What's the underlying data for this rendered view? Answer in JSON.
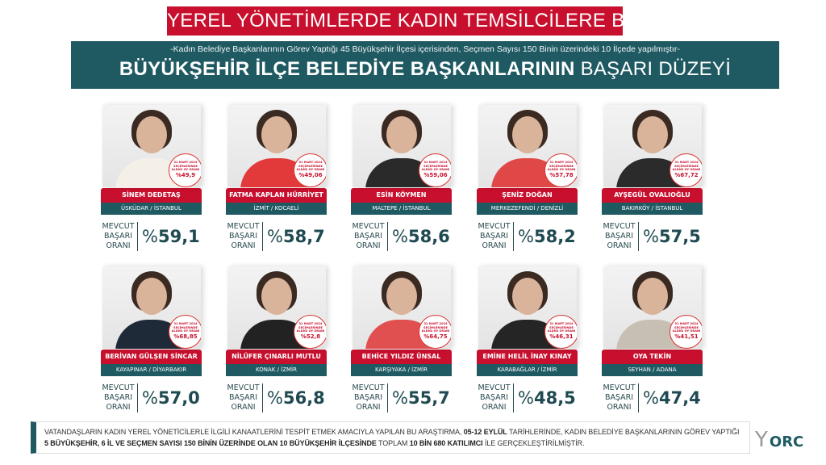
{
  "title": "YEREL YÖNETİMLERDE KADIN TEMSİLCİLERE BAKIŞ",
  "banner": {
    "subtitle": "-Kadın Belediye Başkanlarının Görev Yaptığı 45 Büyükşehir İlçesi içerisinden, Seçmen Sayısı 150 Binin üzerindeki 10 İlçede yapılmıştır-",
    "heading_bold": "BÜYÜKŞEHİR İLÇE BELEDİYE BAŞKANLARININ",
    "heading_light": "BAŞARI DÜZEYİ"
  },
  "badge_label": [
    "31 MART 2024",
    "SEÇİMLERİNDE",
    "ALDIĞI OY ORANI"
  ],
  "metric_label": [
    "MEVCUT",
    "BAŞARI",
    "ORANI"
  ],
  "percent_sign": "%",
  "mayors": [
    {
      "name": "SİNEM DEDETAŞ",
      "location": "ÜSKÜDAR / İSTANBUL",
      "vote": "%49,9",
      "score": "59,1",
      "jacket": "#f4f0e8"
    },
    {
      "name": "FATMA KAPLAN HÜRRİYET",
      "location": "İZMİT / KOCAELİ",
      "vote": "%49,06",
      "score": "58,7",
      "jacket": "#e23a3a"
    },
    {
      "name": "ESİN KÖYMEN",
      "location": "MALTEPE / İSTANBUL",
      "vote": "%59,06",
      "score": "58,6",
      "jacket": "#2a2a2a"
    },
    {
      "name": "ŞENİZ DOĞAN",
      "location": "MERKEZEFENDİ / DENİZLİ",
      "vote": "%57,78",
      "score": "58,2",
      "jacket": "#e04848"
    },
    {
      "name": "AYŞEGÜL OVALIOĞLU",
      "location": "BAKIRKÖY / İSTANBUL",
      "vote": "%67,72",
      "score": "57,5",
      "jacket": "#2b2b2b"
    },
    {
      "name": "BERİVAN GÜLŞEN SİNCAR",
      "location": "KAYAPINAR / DİYARBAKIR",
      "vote": "%68,85",
      "score": "57,0",
      "jacket": "#1e2a38"
    },
    {
      "name": "NİLÜFER ÇINARLI MUTLU",
      "location": "KONAK / İZMİR",
      "vote": "%52,8",
      "score": "56,8",
      "jacket": "#222"
    },
    {
      "name": "BEHİCE YILDIZ ÜNSAL",
      "location": "KARŞIYAKA / İZMİR",
      "vote": "%64,75",
      "score": "55,7",
      "jacket": "#e05050"
    },
    {
      "name": "EMİNE HELİL İNAY KINAY",
      "location": "KARABAĞLAR / İZMİR",
      "vote": "%46,31",
      "score": "48,5",
      "jacket": "#252525"
    },
    {
      "name": "OYA TEKİN",
      "location": "SEYHAN / ADANA",
      "vote": "%41,51",
      "score": "47,4",
      "jacket": "#c8bfb4"
    }
  ],
  "footer": {
    "p1": "VATANDAŞLARIN KADIN YEREL YÖNETİCİLERLE İLGİLİ KANAATLERİNİ TESPİT ETMEK AMACIYLA YAPILAN BU ARAŞTIRMA, ",
    "b1": "05-12 EYLÜL",
    "p2": " TARİHLERİNDE, KADIN BELEDİYE BAŞKANLARININ GÖREV YAPTIĞI ",
    "b2": "5 BÜYÜKŞEHİR, 6 İL VE SEÇMEN SAYISI 150 BİNİN ÜZERİNDE OLAN 10 BÜYÜKŞEHİR İLÇESİNDE",
    "p3": " TOPLAM ",
    "b3": "10 BİN 680 KATILIMCI",
    "p4": " İLE GERÇEKLEŞTİRİLMİŞTİR."
  },
  "logo": "ORC",
  "colors": {
    "red": "#c8102e",
    "teal": "#1f5a63"
  }
}
